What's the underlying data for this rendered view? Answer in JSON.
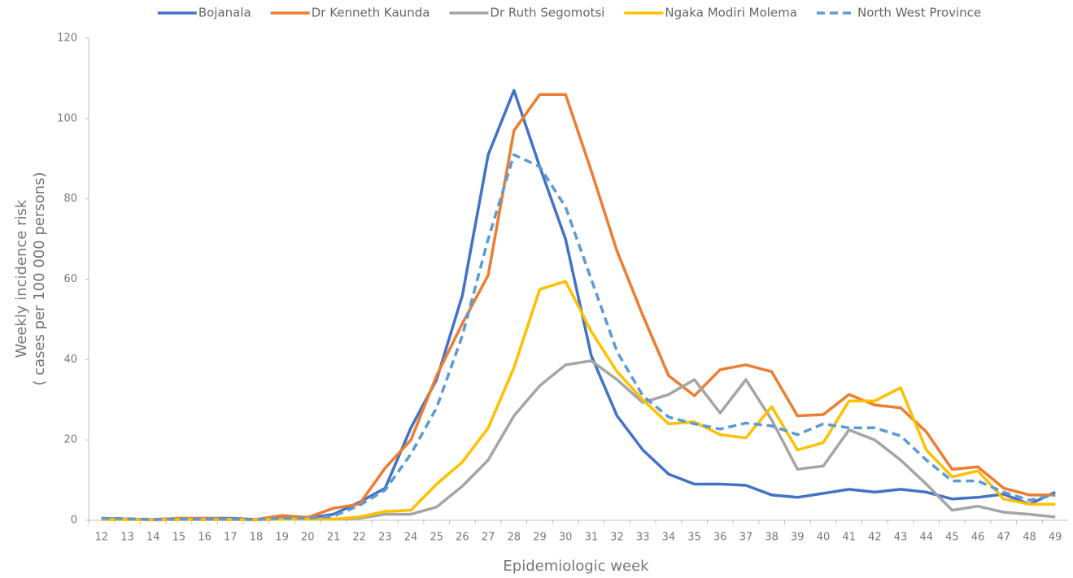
{
  "chart_data": {
    "type": "line",
    "x_label": "Epidemiologic week",
    "y_label": [
      "Weekly incidence risk",
      "( cases per 100 000 persons)"
    ],
    "categories": [
      "12",
      "13",
      "14",
      "15",
      "16",
      "17",
      "18",
      "19",
      "20",
      "21",
      "22",
      "23",
      "24",
      "25",
      "26",
      "27",
      "28",
      "29",
      "30",
      "31",
      "32",
      "33",
      "34",
      "35",
      "36",
      "37",
      "38",
      "39",
      "40",
      "41",
      "42",
      "43",
      "44",
      "45",
      "46",
      "47",
      "48",
      "49"
    ],
    "series": [
      {
        "name": "Bojanala",
        "color": "#4472c4",
        "dash": false,
        "values": [
          0.5,
          0.3,
          0.2,
          0.4,
          0.5,
          0.5,
          0.2,
          0.5,
          0.5,
          1.5,
          4.5,
          8,
          23,
          35,
          56,
          91,
          107,
          88,
          70,
          41,
          26,
          17.5,
          11.5,
          9,
          9,
          8.7,
          6.3,
          5.7,
          6.7,
          7.7,
          7,
          7.7,
          7,
          5.3,
          5.7,
          6.5,
          4,
          7
        ]
      },
      {
        "name": "Dr Kenneth Kaunda",
        "color": "#ed7d31",
        "dash": false,
        "values": [
          0.3,
          0.3,
          0.2,
          0.5,
          0.5,
          0.3,
          0.2,
          1.2,
          0.7,
          3,
          4,
          13,
          20,
          36,
          49,
          61,
          97,
          106,
          106,
          87,
          67,
          51,
          36,
          31,
          37.5,
          38.7,
          37,
          26,
          26.3,
          31.3,
          28.7,
          28,
          22,
          12.7,
          13.3,
          8,
          6.3,
          6.3
        ]
      },
      {
        "name": "Dr Ruth Segomotsi",
        "color": "#a5a5a5",
        "dash": false,
        "values": [
          0.2,
          0.2,
          0.1,
          0.2,
          0.2,
          0.2,
          0.1,
          0.3,
          0.3,
          0.3,
          0.5,
          1.5,
          1.5,
          3.3,
          8.5,
          15,
          26,
          33.5,
          38.7,
          39.7,
          35,
          29.3,
          31.3,
          35,
          26.7,
          35,
          25,
          12.7,
          13.5,
          22.5,
          20,
          15,
          9,
          2.5,
          3.5,
          2,
          1.5,
          0.8
        ]
      },
      {
        "name": "Ngaka Modiri Molema",
        "color": "#ffc000",
        "dash": false,
        "values": [
          0.2,
          0.2,
          0.1,
          0.2,
          0.2,
          0.2,
          0.1,
          0.3,
          0.3,
          0.3,
          0.8,
          2.2,
          2.5,
          9,
          14.5,
          23,
          38,
          57.5,
          59.5,
          47,
          37,
          30,
          24,
          24.5,
          21.3,
          20.5,
          28.3,
          17.5,
          19.3,
          29.7,
          29.7,
          33,
          17.5,
          10.8,
          12.3,
          5.3,
          4,
          4
        ]
      },
      {
        "name": "North West Province",
        "color": "#5b9bd5",
        "dash": true,
        "values": [
          0.5,
          0.4,
          0.2,
          0.3,
          0.3,
          0.3,
          0.2,
          0.5,
          0.5,
          1,
          3.7,
          7.5,
          16.5,
          28,
          46,
          70,
          91,
          88,
          78,
          60,
          42,
          31,
          25.7,
          24,
          22.7,
          24.2,
          23.5,
          21.3,
          24,
          23,
          23,
          21,
          15,
          9.8,
          9.8,
          7,
          5,
          6.3
        ]
      }
    ],
    "ylim": [
      0,
      120
    ],
    "yticks": [
      0,
      20,
      40,
      60,
      80,
      100,
      120
    ],
    "grid": false
  }
}
